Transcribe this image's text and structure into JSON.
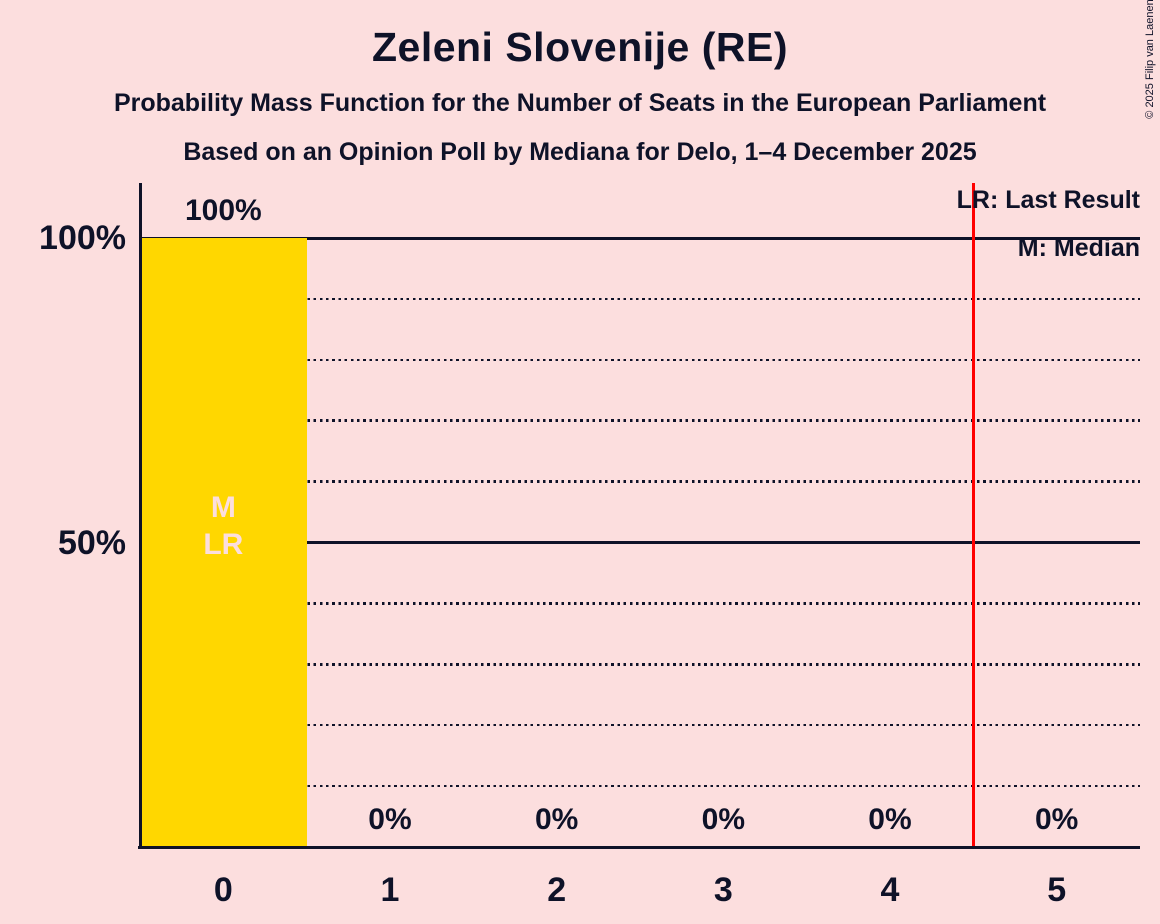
{
  "title": "Zeleni Slovenije (RE)",
  "subtitle1": "Probability Mass Function for the Number of Seats in the European Parliament",
  "subtitle2": "Based on an Opinion Poll by Mediana for Delo, 1–4 December 2025",
  "copyright": "© 2025 Filip van Laenen",
  "legend": {
    "lr": "LR: Last Result",
    "m": "M: Median"
  },
  "colors": {
    "background": "#fcdede",
    "ink": "#0e1228",
    "bar": "#ffd700",
    "bar_annotation": "#fcdede",
    "red_line": "#ff0000"
  },
  "chart_data": {
    "type": "bar",
    "title": "Zeleni Slovenije (RE)",
    "categories": [
      "0",
      "1",
      "2",
      "3",
      "4",
      "5"
    ],
    "values": [
      100,
      0,
      0,
      0,
      0,
      0
    ],
    "value_labels": [
      "100%",
      "0%",
      "0%",
      "0%",
      "0%",
      "0%"
    ],
    "xlabel": "",
    "ylabel": "",
    "ylim": [
      0,
      100
    ],
    "yticks": [
      {
        "value": 100,
        "label": "100%"
      },
      {
        "value": 50,
        "label": "50%"
      }
    ],
    "solid_gridlines": [
      100,
      50
    ],
    "dotted_gridlines": [
      90,
      80,
      70,
      60,
      40,
      30,
      20,
      10
    ],
    "red_vertical_line_x": 4.5,
    "median_seats": 0,
    "last_result_seats": 0,
    "bar_annotations": [
      {
        "category": "0",
        "lines": [
          "M",
          "LR"
        ]
      }
    ],
    "legend_position": "top-right",
    "grid": "horizontal-dotted"
  }
}
